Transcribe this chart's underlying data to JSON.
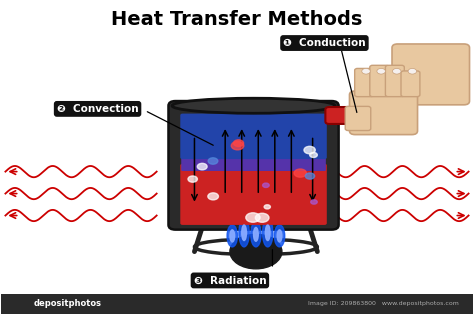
{
  "title": "Heat Transfer Methods",
  "title_fontsize": 14,
  "title_fontweight": "bold",
  "bg_color": "#ffffff",
  "label_bg": "#111111",
  "label_fg": "#ffffff",
  "wave_color": "#cc0000",
  "label1_text": "Conduction",
  "label2_text": "Convection",
  "label3_text": "Radiation",
  "watermark": "depositphotos",
  "watermark_id": "Image ID: 209863800",
  "watermark_url": "www.depositphotos.com",
  "pot_color": "#2a2a2a",
  "pot_edge": "#111111",
  "red_water": "#cc2222",
  "blue_water": "#2244aa",
  "purple_water": "#5533aa",
  "handle_color": "#cc2222",
  "handle_edge": "#880000",
  "skin_color": "#e8c8a0",
  "skin_edge": "#c8a07a",
  "flame_blue": "#1155ee",
  "flame_light": "#88aaff",
  "burner_color": "#1a1a1a",
  "stand_color": "#222222"
}
